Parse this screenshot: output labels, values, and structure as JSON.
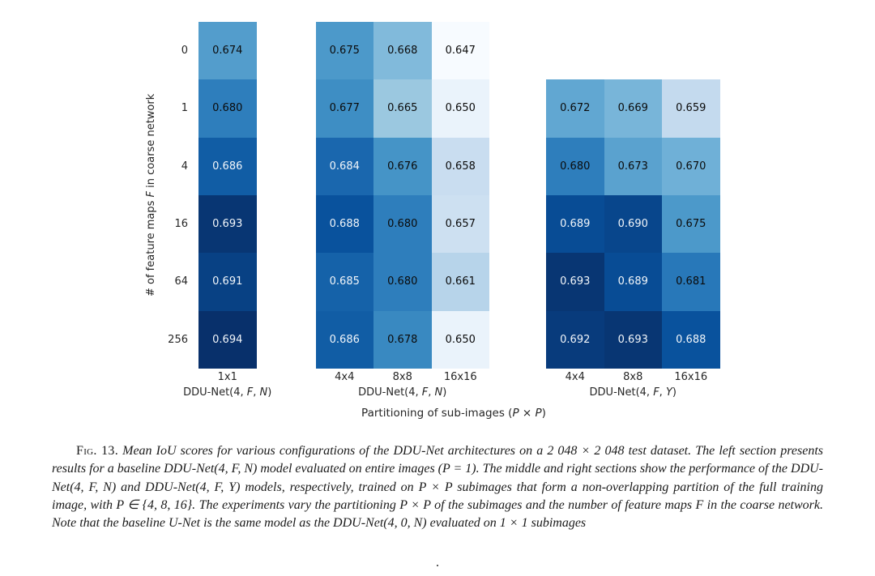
{
  "chart_data": {
    "type": "heatmap",
    "title": "",
    "xlabel": "Partitioning of sub-images (P × P)",
    "ylabel": "# of feature maps F in coarse network",
    "row_labels": [
      "0",
      "1",
      "4",
      "16",
      "64",
      "256"
    ],
    "sections": [
      {
        "name": "DDU-Net(4, F, N)",
        "columns": [
          "1x1"
        ],
        "start_row": 0,
        "values": [
          [
            0.674
          ],
          [
            0.68
          ],
          [
            0.686
          ],
          [
            0.693
          ],
          [
            0.691
          ],
          [
            0.694
          ]
        ]
      },
      {
        "name": "DDU-Net(4, F, N)",
        "columns": [
          "4x4",
          "8x8",
          "16x16"
        ],
        "start_row": 0,
        "values": [
          [
            0.675,
            0.668,
            0.647
          ],
          [
            0.677,
            0.665,
            0.65
          ],
          [
            0.684,
            0.676,
            0.658
          ],
          [
            0.688,
            0.68,
            0.657
          ],
          [
            0.685,
            0.68,
            0.661
          ],
          [
            0.686,
            0.678,
            0.65
          ]
        ]
      },
      {
        "name": "DDU-Net(4, F, Y)",
        "columns": [
          "4x4",
          "8x8",
          "16x16"
        ],
        "start_row": 1,
        "values": [
          [
            0.672,
            0.669,
            0.659
          ],
          [
            0.68,
            0.673,
            0.67
          ],
          [
            0.689,
            0.69,
            0.675
          ],
          [
            0.693,
            0.689,
            0.681
          ],
          [
            0.692,
            0.693,
            0.688
          ]
        ]
      }
    ],
    "colormap": {
      "name": "Blues",
      "vmin": 0.647,
      "vmax": 0.694,
      "stops": [
        "#f7fbff",
        "#deebf7",
        "#c6dbef",
        "#9ecae1",
        "#6baed6",
        "#4292c6",
        "#2171b5",
        "#08519c",
        "#08306b"
      ],
      "white_text_min": 0.684,
      "dark_text_color": "#0b0b0b",
      "light_text_color": "#f2f6fa"
    },
    "value_format": "0.000",
    "legend_position": "none",
    "grid": false
  },
  "caption": {
    "fig_label": "Fig. 13.",
    "text": " Mean IoU scores for various configurations of the DDU-Net architectures on a 2 048 × 2 048 test dataset. The left section presents results for a baseline DDU-Net(4, F, N) model evaluated on entire images (P = 1). The middle and right sections show the performance of the DDU-Net(4, F, N) and DDU-Net(4, F, Y) models, respectively, trained on P × P subimages that form a non-overlapping partition of the full training image, with P ∈ {4, 8, 16}. The experiments vary the partitioning P × P of the subimages and the number of feature maps F in the coarse network. Note that the baseline U-Net is the same model as the DDU-Net(4, 0, N) evaluated on 1 × 1 subimages",
    "trailing_period": "."
  }
}
